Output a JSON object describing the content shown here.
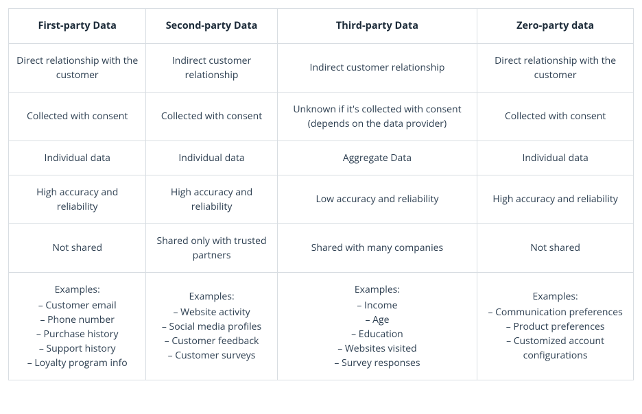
{
  "table": {
    "type": "table",
    "border_color": "#d8dde2",
    "background_color": "#ffffff",
    "header_text_color": "#1c2b39",
    "body_text_color": "#2c3e50",
    "header_fontsize": 14.5,
    "body_fontsize": 14,
    "column_widths_pct": [
      22,
      21,
      32,
      25
    ],
    "columns": [
      "First-party Data",
      "Second-party Data",
      "Third-party Data",
      "Zero-party data"
    ],
    "rows": [
      [
        "Direct relationship with the customer",
        "Indirect customer relationship",
        "Indirect customer relationship",
        "Direct relationship with the customer"
      ],
      [
        "Collected with consent",
        "Collected with consent",
        "Unknown if it's collected with consent (depends on the data provider)",
        "Collected with consent"
      ],
      [
        "Individual data",
        "Individual data",
        "Aggregate Data",
        "Individual data"
      ],
      [
        "High accuracy and reliability",
        "High accuracy and reliability",
        "Low accuracy and reliability",
        "High accuracy and reliability"
      ],
      [
        "Not shared",
        "Shared only with trusted partners",
        "Shared with many companies",
        "Not shared"
      ]
    ],
    "examples_label": "Examples:",
    "examples": [
      [
        "Customer email",
        "Phone number",
        "Purchase history",
        "Support history",
        "Loyalty program info"
      ],
      [
        "Website activity",
        "Social media profiles",
        "Customer feedback",
        "Customer surveys"
      ],
      [
        "Income",
        "Age",
        "Education",
        "Websites visited",
        "Survey responses"
      ],
      [
        "Communication preferences",
        "Product preferences",
        "Customized account configurations"
      ]
    ]
  }
}
